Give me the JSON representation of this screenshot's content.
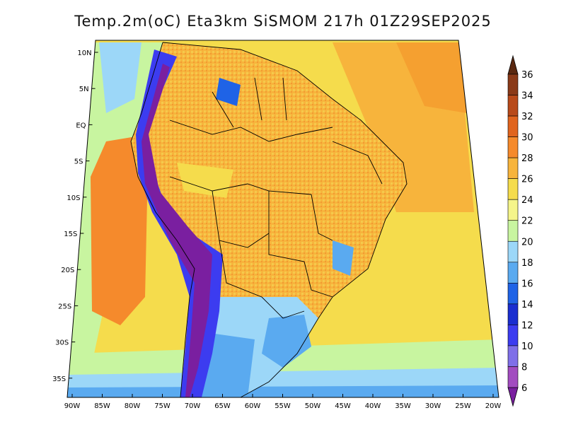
{
  "title": "Temp.2m(oC) Eta3km SiSMOM 217h 01Z29SEP2025",
  "map": {
    "lat_labels": [
      "10N",
      "5N",
      "EQ",
      "5S",
      "10S",
      "15S",
      "20S",
      "25S",
      "30S",
      "35S"
    ],
    "lon_labels": [
      "90W",
      "85W",
      "80W",
      "75W",
      "70W",
      "65W",
      "60W",
      "55W",
      "50W",
      "45W",
      "40W",
      "35W",
      "30W",
      "25W",
      "20W"
    ],
    "extent": {
      "lon_min": -90,
      "lon_max": -20,
      "lat_min": -37,
      "lat_max": 11
    }
  },
  "colorbar": {
    "labels": [
      "6",
      "8",
      "10",
      "12",
      "14",
      "16",
      "18",
      "20",
      "22",
      "24",
      "26",
      "28",
      "30",
      "32",
      "34",
      "36"
    ],
    "colors": [
      "#7a1fa0",
      "#a24cc0",
      "#7f6fe8",
      "#3c3cf0",
      "#1a2ed0",
      "#1f63e6",
      "#5aaaf0",
      "#9cd7f8",
      "#c8f5a0",
      "#f5f58a",
      "#f5dc4c",
      "#f7b43c",
      "#f58a2c",
      "#e0641e",
      "#b84a1a",
      "#8a3a18",
      "#5a2810"
    ]
  }
}
